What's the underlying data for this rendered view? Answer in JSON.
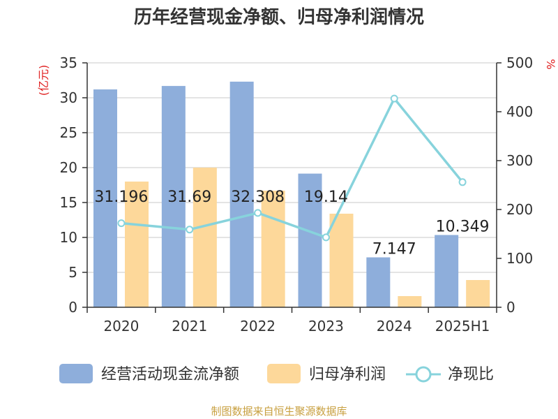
{
  "title": "历年经营现金净额、归母净利润情况",
  "source": "制图数据来自恒生聚源数据库",
  "colors": {
    "cash": "#8eaedb",
    "profit": "#fdd89a",
    "ratio": "#87d3dc",
    "unit": "#e02020",
    "axis": "#333333",
    "grid": "#c8c8c8"
  },
  "chart_data": {
    "type": "bar",
    "categories": [
      "2020",
      "2021",
      "2022",
      "2023",
      "2024",
      "2025H1"
    ],
    "series": [
      {
        "name": "经营活动现金流净额",
        "type": "bar",
        "axis": "left",
        "values": [
          31.196,
          31.69,
          32.308,
          19.14,
          7.147,
          10.349
        ],
        "labels": [
          "31.196",
          "31.69",
          "32.308",
          "19.14",
          "7.147",
          "10.349"
        ]
      },
      {
        "name": "归母净利润",
        "type": "bar",
        "axis": "left",
        "values": [
          18.0,
          20.0,
          16.7,
          13.4,
          1.6,
          3.9
        ]
      },
      {
        "name": "净现比",
        "type": "line",
        "axis": "right",
        "values": [
          172,
          159,
          193,
          143,
          427,
          256
        ]
      }
    ],
    "y_left": {
      "label": "(亿元)",
      "ylim": [
        0,
        35
      ],
      "ticks": [
        "0",
        "5",
        "10",
        "15",
        "20",
        "25",
        "30",
        "35"
      ]
    },
    "y_right": {
      "label": "%",
      "ylim": [
        0,
        500
      ],
      "ticks": [
        "0",
        "100",
        "200",
        "300",
        "400",
        "500"
      ]
    },
    "grid": true,
    "legend_position": "bottom"
  }
}
